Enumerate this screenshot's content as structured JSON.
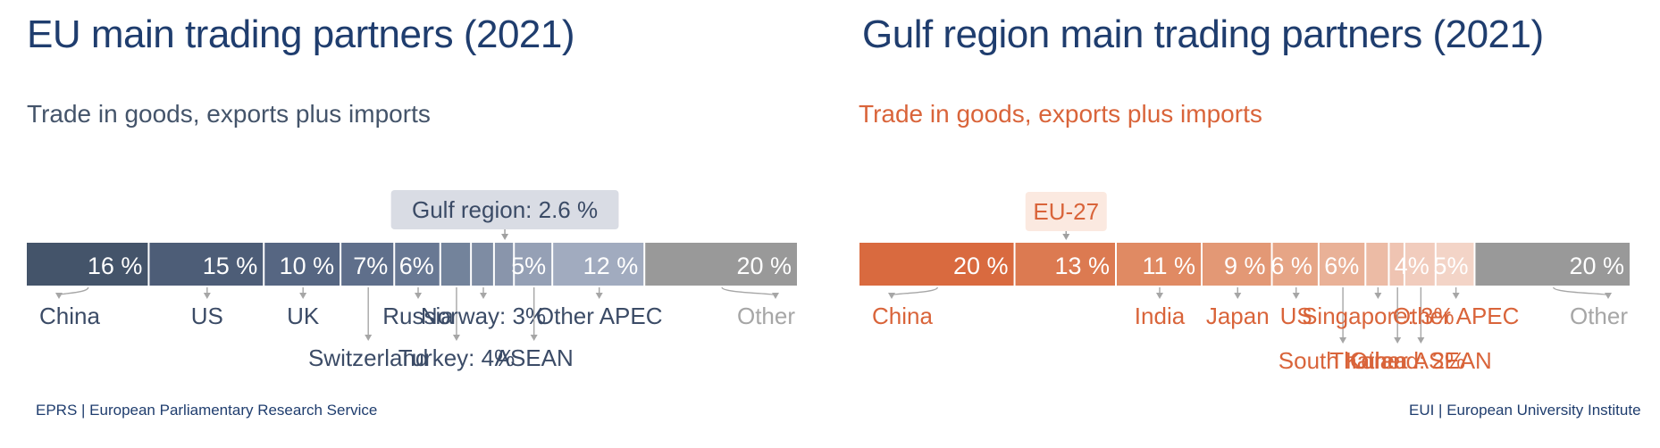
{
  "left": {
    "title": "EU main trading partners (2021)",
    "subtitle": "Trade in goods, exports plus imports",
    "source": "EPRS | European Parliamentary Research Service",
    "highlight_label": "Gulf region: 2.6 %"
  },
  "right": {
    "title": "Gulf region main trading partners (2021)",
    "subtitle": "Trade in goods, exports plus imports",
    "source": "EUI | European University Institute",
    "highlight_label": "EU-27"
  },
  "colors": {
    "title": "#1f3d6e",
    "left_subtitle": "#44546a",
    "right_subtitle": "#d9643a",
    "eu_dark": "#44546a",
    "eu_label": "#3b4b66",
    "other_grey": "#999999",
    "other_label": "#a6a6a6",
    "gulf_dark": "#d96a3f",
    "gulf_label": "#d9643a",
    "eu_callout_bg": "#d9dce4",
    "gulf_callout_bg": "#fbe9e0"
  },
  "chart_data": [
    {
      "type": "bar",
      "subtype": "stacked-100",
      "title": "EU main trading partners (2021)",
      "subtitle": "Trade in goods, exports plus imports",
      "unit": "%",
      "categories": [
        "China",
        "US",
        "UK",
        "Switzerland",
        "Russia",
        "Turkey",
        "Norway",
        "Gulf region",
        "ASEAN",
        "Other APEC",
        "Other"
      ],
      "values": [
        16,
        15,
        10,
        7,
        6,
        4,
        3,
        2.6,
        5,
        12,
        20
      ],
      "value_labels": [
        "16 %",
        "15 %",
        "10 %",
        "7%",
        "6%",
        "",
        "",
        "",
        "5%",
        "12 %",
        "20 %"
      ],
      "category_labels": [
        "China",
        "US",
        "UK",
        "Switzerland",
        "Russia",
        "Turkey: 4%",
        "Norway: 3%",
        "Gulf region: 2.6 %",
        "ASEAN",
        "Other APEC",
        "Other"
      ],
      "colors": [
        "#44546a",
        "#4d5d77",
        "#566682",
        "#5f6f8b",
        "#687893",
        "#73839b",
        "#7e8ca3",
        "#8995ab",
        "#95a0b5",
        "#a1abbf",
        "#999999"
      ],
      "label_row": [
        1,
        1,
        1,
        2,
        1,
        2,
        1,
        0,
        2,
        1,
        1
      ],
      "highlight": "Gulf region"
    },
    {
      "type": "bar",
      "subtype": "stacked-100",
      "title": "Gulf region main trading partners (2021)",
      "subtitle": "Trade in goods, exports plus imports",
      "unit": "%",
      "categories": [
        "China",
        "EU-27",
        "India",
        "Japan",
        "US",
        "South Korea",
        "Singapore",
        "Thailand",
        "Other ASEAN",
        "Other APEC",
        "Other"
      ],
      "values": [
        20,
        13,
        11,
        9,
        6,
        6,
        3,
        2,
        4,
        5,
        20
      ],
      "value_labels": [
        "20 %",
        "13 %",
        "11 %",
        "9 %",
        "6 %",
        "6%",
        "",
        "",
        "4%",
        "5%",
        "20 %"
      ],
      "category_labels": [
        "China",
        "EU-27",
        "India",
        "Japan",
        "US",
        "South Korea",
        "Singapore: 3%",
        "Thailand: 2%",
        "Other ASEAN",
        "Other APEC",
        "Other"
      ],
      "colors": [
        "#d96a3f",
        "#dc7a51",
        "#e08a63",
        "#e39875",
        "#e6a586",
        "#e9b197",
        "#ecbba5",
        "#efc4b2",
        "#f1ccbd",
        "#f3d4c7",
        "#999999"
      ],
      "label_row": [
        1,
        0,
        1,
        1,
        1,
        2,
        1,
        2,
        2,
        1,
        1
      ],
      "highlight": "EU-27"
    }
  ]
}
